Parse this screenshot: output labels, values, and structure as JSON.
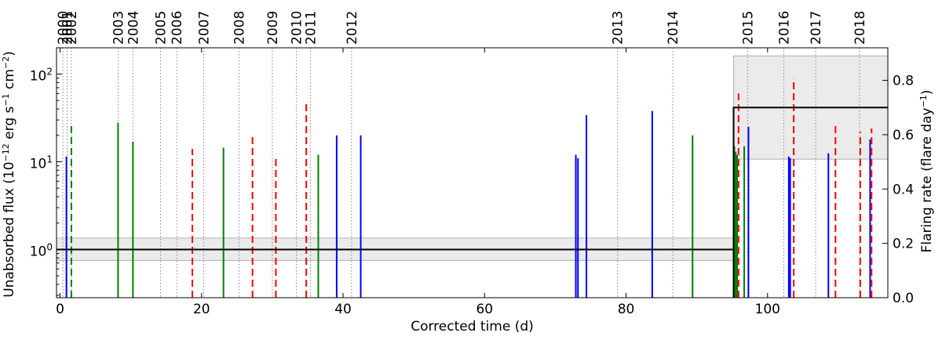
{
  "chart_data": {
    "type": "bar",
    "xlabel": "Corrected time (d)",
    "ylabel_left": "Unabsorbed flux (10$^{-12}$ erg s$^{-1}$ cm$^{-2}$)",
    "ylabel_left_parts": {
      "pre": "Unabsorbed flux (10",
      "exp1": "−12",
      "mid1": " erg s",
      "exp2": "−1",
      "mid2": " cm",
      "exp3": "−2",
      "post": ")"
    },
    "ylabel_right": "Flaring rate (flare day",
    "ylabel_right_exp": "−1",
    "ylabel_right_post": ")",
    "xlim": [
      -0.5,
      117
    ],
    "ylim_left_log10": [
      -0.55,
      2.3
    ],
    "ylim_right": [
      0.0,
      0.92
    ],
    "x_ticks": [
      0,
      20,
      40,
      60,
      80,
      100
    ],
    "x_tick_labels": [
      "0",
      "20",
      "40",
      "60",
      "80",
      "100"
    ],
    "y_left_ticks_log10": [
      0,
      1,
      2
    ],
    "y_left_tick_labels": [
      {
        "base": "10",
        "exp": "0"
      },
      {
        "base": "10",
        "exp": "1"
      },
      {
        "base": "10",
        "exp": "2"
      }
    ],
    "y_right_ticks": [
      0.0,
      0.2,
      0.4,
      0.6,
      0.8
    ],
    "y_right_tick_labels": [
      "0.0",
      "0.2",
      "0.4",
      "0.6",
      "0.8"
    ],
    "years": [
      {
        "label": "2000",
        "x": 0.4
      },
      {
        "label": "2001",
        "x": 1.0
      },
      {
        "label": "2002",
        "x": 1.6
      },
      {
        "label": "2003",
        "x": 8.2
      },
      {
        "label": "2004",
        "x": 10.3
      },
      {
        "label": "2005",
        "x": 14.2
      },
      {
        "label": "2006",
        "x": 16.5
      },
      {
        "label": "2007",
        "x": 20.3
      },
      {
        "label": "2008",
        "x": 25.3
      },
      {
        "label": "2009",
        "x": 30.0
      },
      {
        "label": "2010",
        "x": 33.4
      },
      {
        "label": "2011",
        "x": 35.4
      },
      {
        "label": "2012",
        "x": 41.2
      },
      {
        "label": "2013",
        "x": 78.8
      },
      {
        "label": "2014",
        "x": 86.6
      },
      {
        "label": "2015",
        "x": 97.2
      },
      {
        "label": "2016",
        "x": 102.3
      },
      {
        "label": "2017",
        "x": 106.8
      },
      {
        "label": "2018",
        "x": 113.0
      }
    ],
    "flares": [
      {
        "x": 0.9,
        "flux": 11.5,
        "color": "blue",
        "style": "solid"
      },
      {
        "x": 1.6,
        "flux": 27,
        "color": "green",
        "style": "dashed"
      },
      {
        "x": 8.2,
        "flux": 28,
        "color": "green",
        "style": "solid"
      },
      {
        "x": 10.3,
        "flux": 17,
        "color": "green",
        "style": "solid"
      },
      {
        "x": 18.7,
        "flux": 14,
        "color": "red",
        "style": "dashed"
      },
      {
        "x": 23.1,
        "flux": 14.5,
        "color": "green",
        "style": "solid"
      },
      {
        "x": 27.2,
        "flux": 19.5,
        "color": "red",
        "style": "dashed"
      },
      {
        "x": 30.5,
        "flux": 11,
        "color": "red",
        "style": "dashed"
      },
      {
        "x": 34.8,
        "flux": 50,
        "color": "red",
        "style": "dashed"
      },
      {
        "x": 36.5,
        "flux": 12,
        "color": "green",
        "style": "solid"
      },
      {
        "x": 39.1,
        "flux": 20,
        "color": "blue",
        "style": "solid"
      },
      {
        "x": 42.5,
        "flux": 20,
        "color": "blue",
        "style": "solid"
      },
      {
        "x": 72.9,
        "flux": 12,
        "color": "blue",
        "style": "solid"
      },
      {
        "x": 73.2,
        "flux": 11,
        "color": "blue",
        "style": "solid"
      },
      {
        "x": 74.4,
        "flux": 34,
        "color": "blue",
        "style": "solid"
      },
      {
        "x": 83.7,
        "flux": 38,
        "color": "blue",
        "style": "solid"
      },
      {
        "x": 89.4,
        "flux": 20,
        "color": "green",
        "style": "solid"
      },
      {
        "x": 95.3,
        "flux": 15,
        "color": "green",
        "style": "solid"
      },
      {
        "x": 95.5,
        "flux": 13,
        "color": "green",
        "style": "solid"
      },
      {
        "x": 95.7,
        "flux": 12,
        "color": "green",
        "style": "solid"
      },
      {
        "x": 95.9,
        "flux": 60,
        "color": "red",
        "style": "dashed"
      },
      {
        "x": 96.7,
        "flux": 15,
        "color": "green",
        "style": "solid"
      },
      {
        "x": 97.3,
        "flux": 25,
        "color": "blue",
        "style": "solid"
      },
      {
        "x": 103.0,
        "flux": 11.5,
        "color": "blue",
        "style": "solid"
      },
      {
        "x": 103.2,
        "flux": 11,
        "color": "blue",
        "style": "solid"
      },
      {
        "x": 103.7,
        "flux": 90,
        "color": "red",
        "style": "dashed"
      },
      {
        "x": 108.6,
        "flux": 12.5,
        "color": "blue",
        "style": "solid"
      },
      {
        "x": 109.6,
        "flux": 27,
        "color": "red",
        "style": "dashed"
      },
      {
        "x": 113.1,
        "flux": 22,
        "color": "red",
        "style": "dashed"
      },
      {
        "x": 114.5,
        "flux": 18,
        "color": "blue",
        "style": "solid"
      },
      {
        "x": 114.7,
        "flux": 24,
        "color": "red",
        "style": "dashed"
      }
    ],
    "quiescent_flux": {
      "value": 1.0,
      "band": [
        0.75,
        1.35
      ],
      "x_range": [
        -0.5,
        95.2
      ]
    },
    "flaring_rate": {
      "steps": [
        {
          "x": [
            -0.5,
            95.2
          ],
          "value": 0.185
        },
        {
          "x": [
            95.2,
            117
          ],
          "value": 0.7
        }
      ],
      "band_high": [
        95.2,
        117,
        0.51,
        0.89
      ]
    },
    "colors": {
      "blue": "#0000ff",
      "green": "#008000",
      "red": "#ff0000",
      "band": "#ebebeb",
      "band_edge": "#b0b0b0",
      "grid": "#888888"
    }
  }
}
